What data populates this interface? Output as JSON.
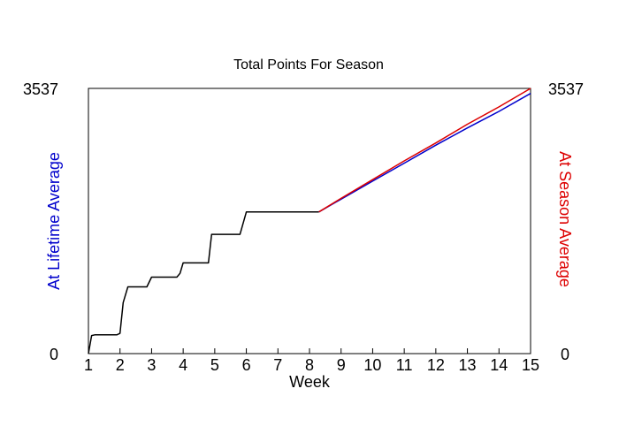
{
  "chart_data": {
    "type": "line",
    "title": "Total Points For Season",
    "xlabel": "Week",
    "ylabel_left": "At Lifetime Average",
    "ylabel_right": "At Season Average",
    "xlim": [
      1,
      15
    ],
    "ylim": [
      0,
      3537
    ],
    "x_ticks": [
      "1",
      "2",
      "3",
      "4",
      "5",
      "6",
      "7",
      "8",
      "9",
      "10",
      "11",
      "12",
      "13",
      "14",
      "15"
    ],
    "y_ticks_left": [
      "0",
      "3537"
    ],
    "y_ticks_right": [
      "0",
      "3537"
    ],
    "grid": false,
    "series": [
      {
        "color": "#000000",
        "points": [
          [
            1.0,
            0
          ],
          [
            1.1,
            240
          ],
          [
            1.2,
            250
          ],
          [
            1.9,
            250
          ],
          [
            2.0,
            270
          ],
          [
            2.1,
            680
          ],
          [
            2.25,
            890
          ],
          [
            2.85,
            890
          ],
          [
            3.0,
            1020
          ],
          [
            3.8,
            1020
          ],
          [
            3.9,
            1070
          ],
          [
            4.0,
            1210
          ],
          [
            4.8,
            1210
          ],
          [
            4.9,
            1590
          ],
          [
            5.8,
            1590
          ],
          [
            6.0,
            1890
          ],
          [
            8.3,
            1890
          ]
        ]
      },
      {
        "color": "#0000cc",
        "points": [
          [
            8.3,
            1890
          ],
          [
            9.0,
            2060
          ],
          [
            10.0,
            2300
          ],
          [
            11.0,
            2540
          ],
          [
            12.0,
            2780
          ],
          [
            13.0,
            3010
          ],
          [
            14.0,
            3230
          ],
          [
            15.0,
            3470
          ]
        ]
      },
      {
        "color": "#dd0000",
        "points": [
          [
            8.3,
            1890
          ],
          [
            9.0,
            2070
          ],
          [
            10.0,
            2320
          ],
          [
            11.0,
            2570
          ],
          [
            12.0,
            2810
          ],
          [
            13.0,
            3060
          ],
          [
            14.0,
            3290
          ],
          [
            15.0,
            3537
          ]
        ]
      }
    ],
    "colors": {
      "ylabel_left": "#0000cc",
      "ylabel_right": "#dd0000"
    }
  }
}
